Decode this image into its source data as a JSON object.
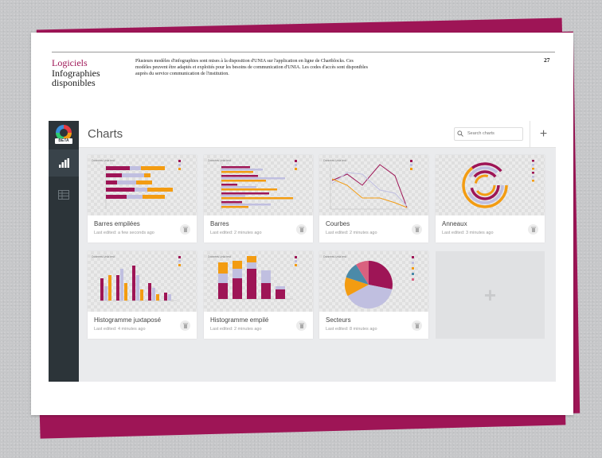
{
  "document": {
    "page_number": "27",
    "section_label": "Logiciels",
    "section_title_line1": "Infographies",
    "section_title_line2": "disponibles",
    "intro_text": "Plusieurs modèles d'infographies sont mises à la disposition d'UNIA sur l'application en ligne de Chartblocks. Ces modèles peuvent être adaptés et exploités pour les besoins de communication d'UNIA. Les codes d'accès sont disponibles auprès du service communication de l'institution.",
    "accent_color": "#9e1556"
  },
  "app": {
    "logo_badge": "BETA",
    "title": "Charts",
    "search_placeholder": "Search charts",
    "add_button_label": "+",
    "nav_items": [
      {
        "icon": "bar-chart-icon",
        "active": true
      },
      {
        "icon": "table-icon",
        "active": false
      }
    ],
    "colors": {
      "sidebar": "#2c3439",
      "series_primary": "#9e1556",
      "series_secondary": "#c0bfe0",
      "series_tertiary": "#f39c12",
      "series_quaternary": "#4b8aa8"
    },
    "charts": [
      {
        "name": "Barres empilées",
        "edited": "Last edited: a few seconds ago",
        "thumb_title": "Données Unia test"
      },
      {
        "name": "Barres",
        "edited": "Last edited: 2 minutes ago",
        "thumb_title": "Données Unia test"
      },
      {
        "name": "Courbes",
        "edited": "Last edited: 2 minutes ago",
        "thumb_title": "Données Unia test"
      },
      {
        "name": "Anneaux",
        "edited": "Last edited: 3 minutes ago",
        "thumb_title": ""
      },
      {
        "name": "Histogramme juxtaposé",
        "edited": "Last edited: 4 minutes ago",
        "thumb_title": "Données Unia test"
      },
      {
        "name": "Histogramme empilé",
        "edited": "Last edited: 2 minutes ago",
        "thumb_title": "Données Unia test"
      },
      {
        "name": "Secteurs",
        "edited": "Last edited: 8 minutes ago",
        "thumb_title": "Données Unia test"
      }
    ],
    "new_chart_label": "+"
  }
}
